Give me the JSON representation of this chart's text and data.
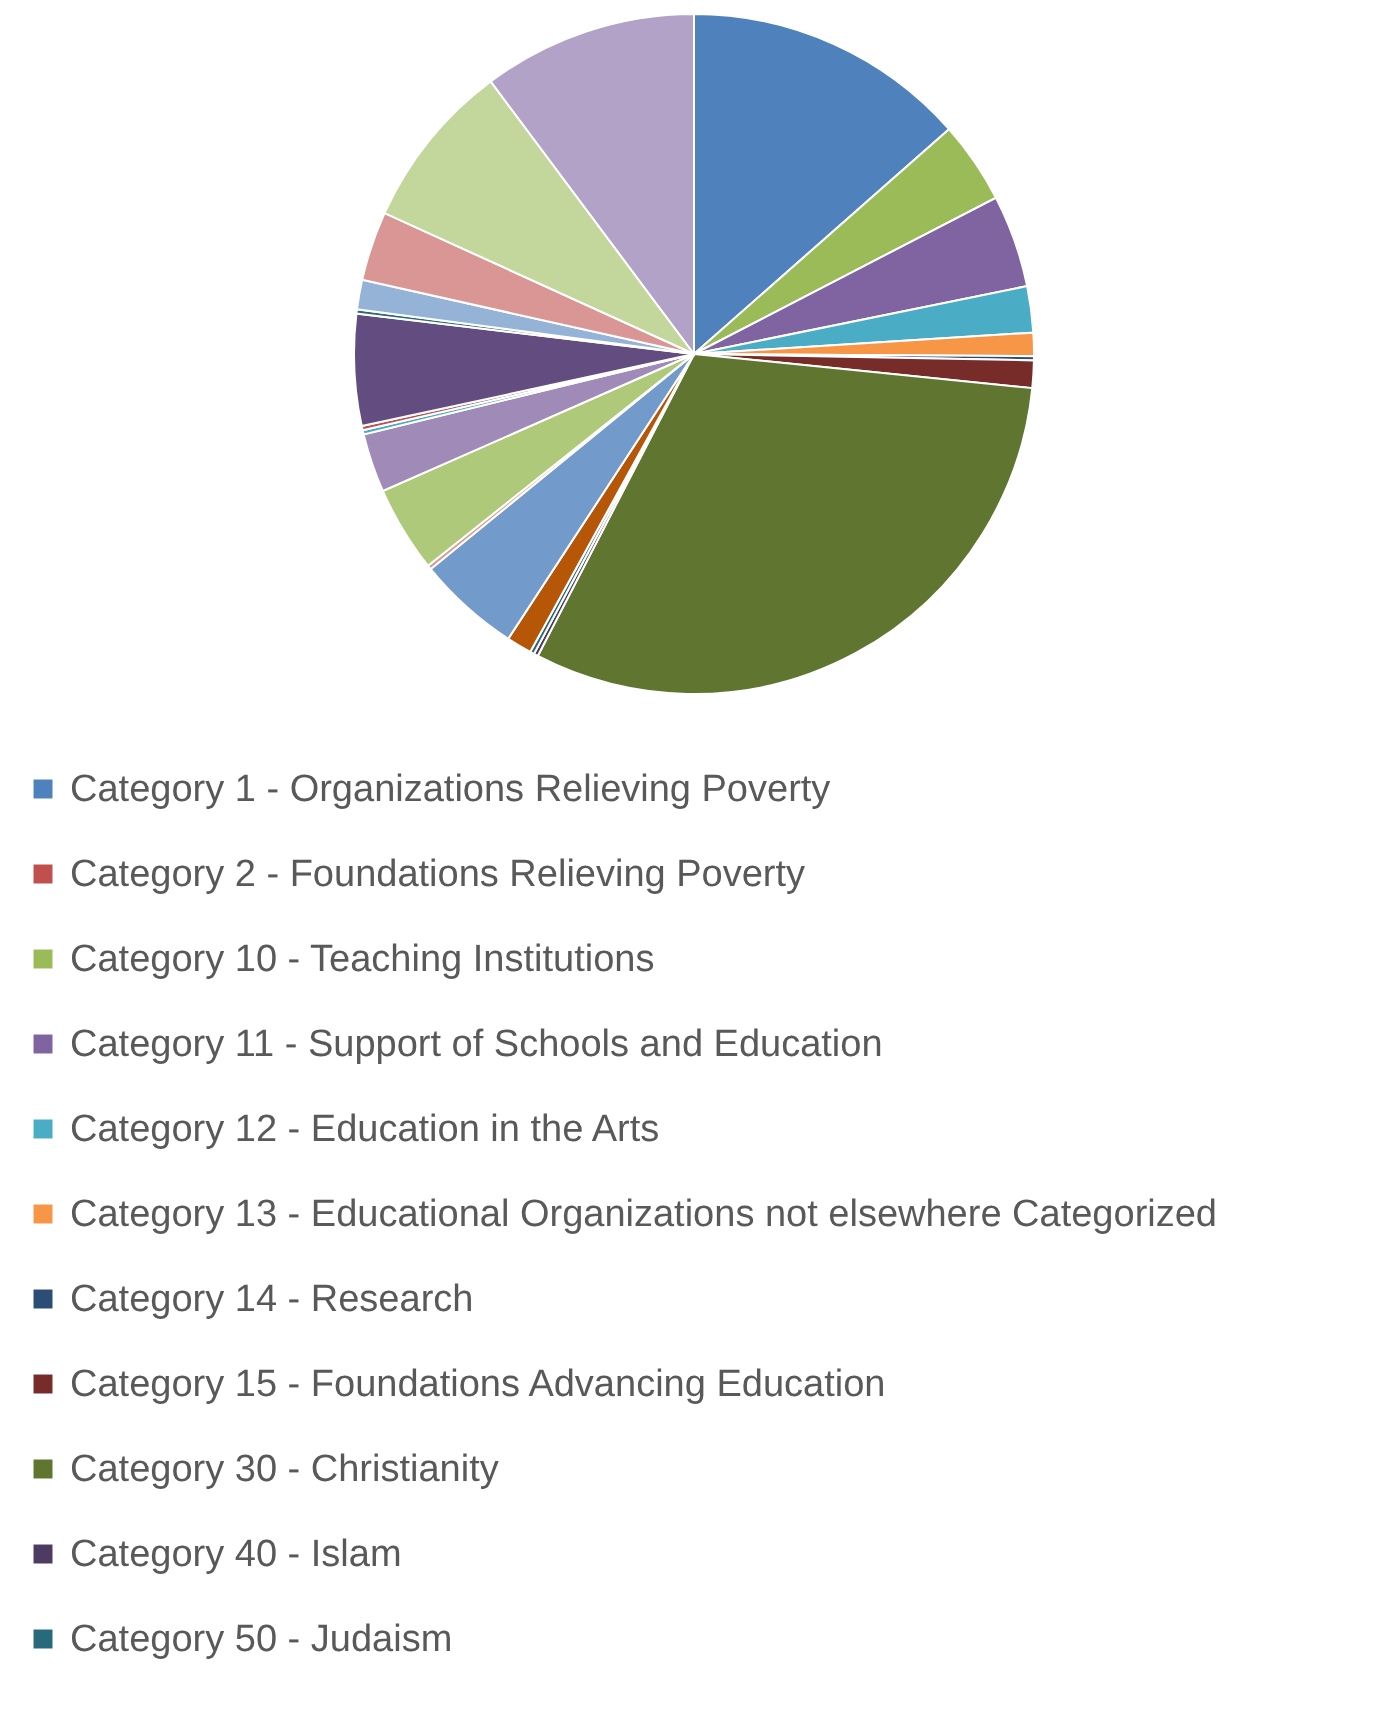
{
  "chart_data": {
    "type": "pie",
    "legend": "bottom",
    "categories": [
      "Category 1 - Organizations Relieving Poverty",
      "Category 2 - Foundations Relieving Poverty",
      "Category 10 - Teaching Institutions",
      "Category 11 - Support of Schools and Education",
      "Category 12 - Education in the Arts",
      "Category 13 - Educational Organizations not elsewhere Categorized",
      "Category 14 - Research",
      "Category 15 - Foundations Advancing Education",
      "Category 30 - Christianity",
      "Category 40 - Islam",
      "Category 50 - Judaism",
      null,
      null,
      null,
      null,
      null,
      null,
      null,
      null,
      null,
      null,
      null,
      null,
      null
    ],
    "values": [
      13.5,
      null,
      3.9,
      4.4,
      2.2,
      1.1,
      0.2,
      1.3,
      31.0,
      0.2,
      0.2,
      1.2,
      4.9,
      0.2,
      4.1,
      2.8,
      0.2,
      0.2,
      5.3,
      0.2,
      1.4,
      3.3,
      8.0,
      10.2
    ],
    "colors": [
      "#4f81bd",
      "#c0504d",
      "#9bbb59",
      "#8064a2",
      "#4bacc6",
      "#f79646",
      "#2c4d75",
      "#772c2a",
      "#5f7530",
      "#4d3b62",
      "#276a7c",
      "#b65708",
      "#729aca",
      "#d99694",
      "#afc97a",
      "#a08bb8",
      "#4bacc6",
      "#c0504d",
      "#634c80",
      "#276a7c",
      "#95b3d7",
      "#d99694",
      "#c3d69b",
      "#b2a2c7"
    ]
  }
}
